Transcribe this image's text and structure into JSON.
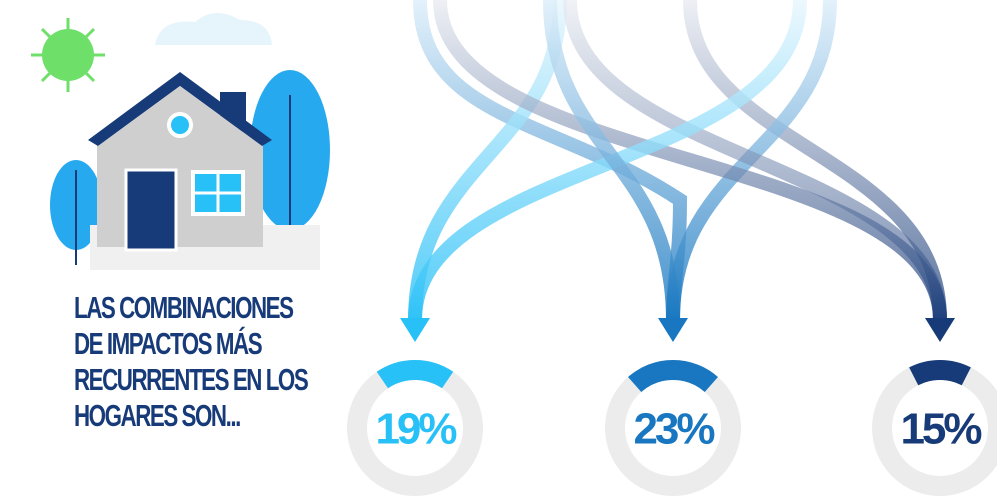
{
  "chart_data": {
    "type": "gauge",
    "title": "LAS COMBINACIONES DE IMPACTOS MÁS RECURRENTES EN LOS HOGARES SON...",
    "values": [
      19,
      23,
      15
    ],
    "value_labels": [
      "19%",
      "23%",
      "15%"
    ],
    "colors": [
      "#27c0f7",
      "#1877c0",
      "#173a78"
    ]
  }
}
